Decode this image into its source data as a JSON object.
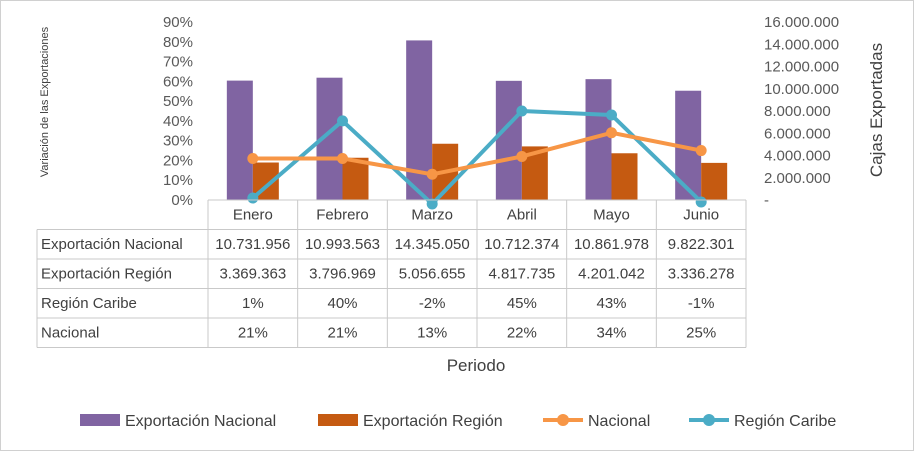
{
  "chart_data": {
    "type": "bar",
    "categories": [
      "Enero",
      "Febrero",
      "Marzo",
      "Abril",
      "Mayo",
      "Junio"
    ],
    "series": [
      {
        "name": "Exportación Nacional",
        "kind": "bar",
        "axis": "right",
        "color": "#8064A2",
        "values": [
          10731956,
          10993563,
          14345050,
          10712374,
          10861978,
          9822301
        ],
        "labels": [
          "10.731.956",
          "10.993.563",
          "14.345.050",
          "10.712.374",
          "10.861.978",
          "9.822.301"
        ]
      },
      {
        "name": "Exportación Región",
        "kind": "bar",
        "axis": "right",
        "color": "#C55A11",
        "values": [
          3369363,
          3796969,
          5056655,
          4817735,
          4201042,
          3336278
        ],
        "labels": [
          "3.369.363",
          "3.796.969",
          "5.056.655",
          "4.817.735",
          "4.201.042",
          "3.336.278"
        ]
      },
      {
        "name": "Región Caribe",
        "kind": "line",
        "axis": "left",
        "color": "#4BACC6",
        "values": [
          1,
          40,
          -2,
          45,
          43,
          -1
        ],
        "labels": [
          "1%",
          "40%",
          "-2%",
          "45%",
          "43%",
          "-1%"
        ]
      },
      {
        "name": "Nacional",
        "kind": "line",
        "axis": "left",
        "color": "#F79646",
        "values": [
          21,
          21,
          13,
          22,
          34,
          25
        ],
        "labels": [
          "21%",
          "21%",
          "13%",
          "22%",
          "34%",
          "25%"
        ]
      }
    ],
    "ylabel": "Variación de las Exportaciones",
    "y2label": "Cajas Exportadas",
    "xlabel": "Periodo",
    "ylim": [
      0,
      90
    ],
    "y_ticks": [
      "0%",
      "10%",
      "20%",
      "30%",
      "40%",
      "50%",
      "60%",
      "70%",
      "80%",
      "90%"
    ],
    "y2lim": [
      0,
      16000000
    ],
    "y2_ticks": [
      "-",
      "2.000.000",
      "4.000.000",
      "6.000.000",
      "8.000.000",
      "10.000.000",
      "12.000.000",
      "14.000.000",
      "16.000.000"
    ],
    "legend": [
      "Exportación Nacional",
      "Exportación Región",
      "Nacional",
      "Región Caribe"
    ],
    "legend_position": "bottom",
    "grid": false
  }
}
